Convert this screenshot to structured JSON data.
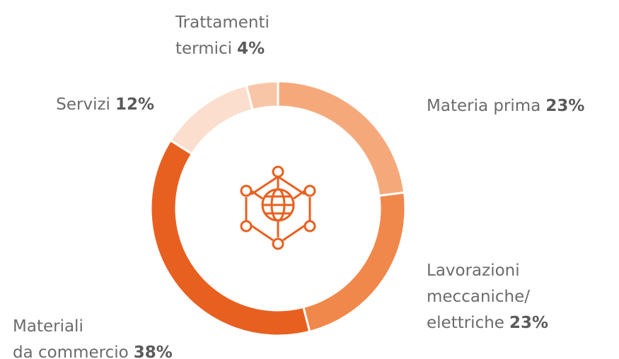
{
  "chart_data": {
    "type": "donut",
    "categories": [
      [
        "Materia prima"
      ],
      [
        "Lavorazioni",
        "meccaniche/",
        "elettriche"
      ],
      [
        "Materiali",
        "da commercio"
      ],
      [
        "Servizi"
      ],
      [
        "Trattamenti",
        "termici"
      ]
    ],
    "values": [
      23,
      23,
      38,
      12,
      4
    ],
    "value_labels": [
      "23%",
      "23%",
      "38%",
      "12%",
      "4%"
    ],
    "colors": [
      "#f5a97b",
      "#f0884b",
      "#e8601f",
      "#fbdecd",
      "#f8c6a7"
    ]
  }
}
